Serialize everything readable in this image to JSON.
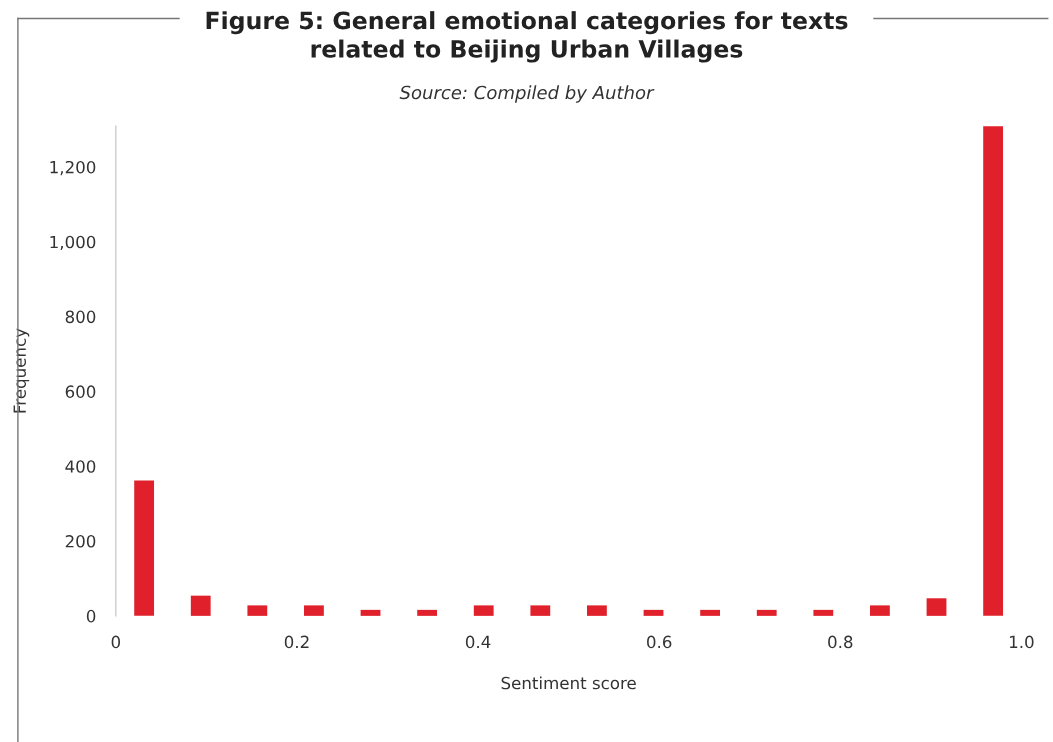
{
  "chart_data": {
    "type": "histogram",
    "title": "Figure 5: General emotional categories for texts\nrelated to Beijing Urban Villages",
    "subtitle": "Source: Compiled by Author",
    "xlabel": "Sentiment score",
    "ylabel": "Frequency",
    "bins": [
      0,
      0.0625,
      0.125,
      0.1875,
      0.25,
      0.3125,
      0.375,
      0.4375,
      0.5,
      0.5625,
      0.625,
      0.6875,
      0.75,
      0.8125,
      0.875,
      0.9375,
      1.0
    ],
    "values": [
      362,
      54,
      28,
      28,
      16,
      16,
      28,
      28,
      28,
      16,
      16,
      16,
      16,
      28,
      47,
      1309
    ],
    "color": "#e0202a",
    "xlim": [
      0,
      1.0
    ],
    "xticks": [
      0,
      0.2,
      0.4,
      0.6,
      0.8,
      {
        "value": 1.0,
        "label": "1.0"
      }
    ],
    "ylim": [
      0,
      1309
    ],
    "yticks": [
      0,
      200,
      400,
      600,
      800,
      {
        "value": 1000,
        "label": "1,000"
      },
      {
        "value": 1200,
        "label": "1,200"
      }
    ],
    "grid": false,
    "legend": false
  }
}
